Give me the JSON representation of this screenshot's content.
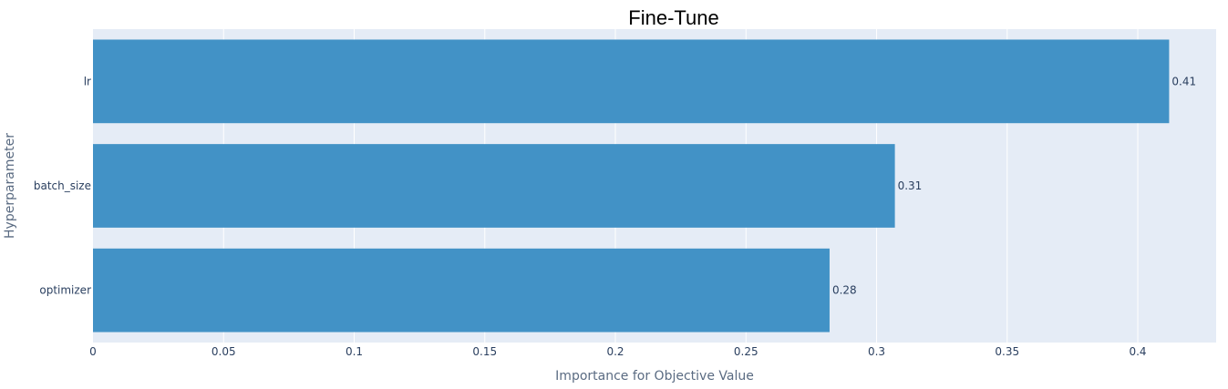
{
  "chart_data": {
    "type": "bar",
    "orientation": "horizontal",
    "title": "Fine-Tune",
    "xlabel": "Importance for Objective Value",
    "ylabel": "Hyperparameter",
    "categories": [
      "lr",
      "batch_size",
      "optimizer"
    ],
    "values": [
      0.412,
      0.307,
      0.282
    ],
    "value_labels": [
      "0.41",
      "0.31",
      "0.28"
    ],
    "xlim": [
      0,
      0.43
    ],
    "xticks": [
      0,
      0.05,
      0.1,
      0.15,
      0.2,
      0.25,
      0.3,
      0.35,
      0.4
    ],
    "xtick_labels": [
      "0",
      "0.05",
      "0.1",
      "0.15",
      "0.2",
      "0.25",
      "0.3",
      "0.35",
      "0.4"
    ],
    "grid": true,
    "bar_color": "#4292c6",
    "plot_background": "#e5ecf6"
  }
}
